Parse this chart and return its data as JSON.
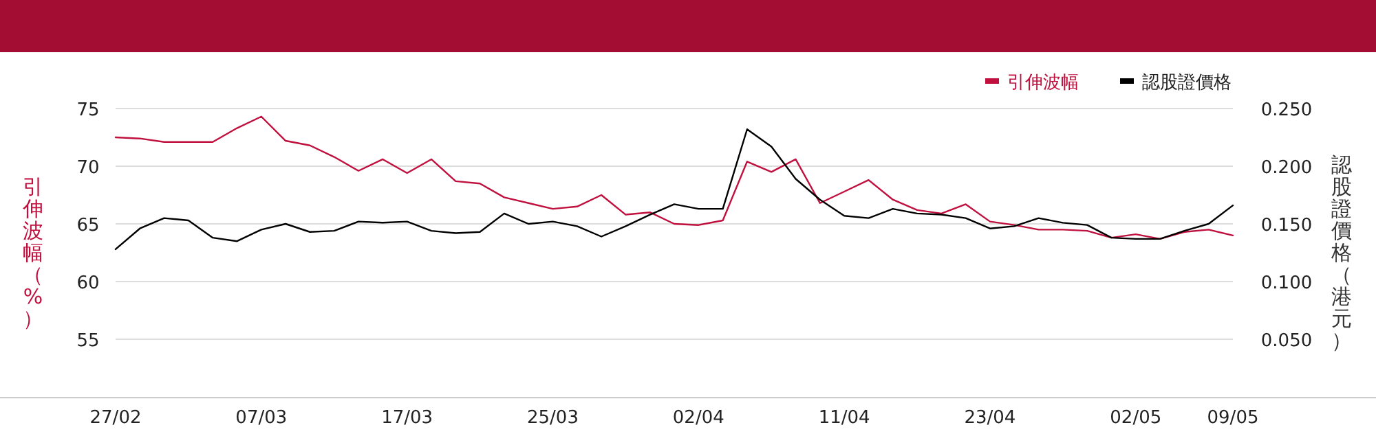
{
  "chart_data": {
    "type": "line",
    "categories": [
      "27/02",
      null,
      null,
      null,
      null,
      null,
      "07/03",
      null,
      null,
      null,
      null,
      null,
      "17/03",
      null,
      null,
      null,
      null,
      null,
      "25/03",
      null,
      null,
      null,
      null,
      null,
      "02/04",
      null,
      null,
      null,
      null,
      null,
      "11/04",
      null,
      null,
      null,
      null,
      null,
      "23/04",
      null,
      null,
      null,
      null,
      null,
      "02/05",
      null,
      null,
      null,
      "09/05"
    ],
    "ylabel": "引伸波幅（%）",
    "y2label": "認股證價格（港元）",
    "ylim": [
      50,
      75
    ],
    "yticks": [
      55,
      60,
      65,
      70,
      75
    ],
    "y2lim": [
      0,
      0.25
    ],
    "y2ticks": [
      {
        "value": 0.05,
        "label": "0.050"
      },
      {
        "value": 0.1,
        "label": "0.100"
      },
      {
        "value": 0.15,
        "label": "0.150"
      },
      {
        "value": 0.2,
        "label": "0.200"
      },
      {
        "value": 0.25,
        "label": "0.250"
      }
    ],
    "grid": "y",
    "legend": "top right",
    "series": [
      {
        "name": "引伸波幅",
        "color": "#c0103e",
        "values": [
          72.5,
          72.4,
          72.1,
          72.1,
          72.1,
          73.3,
          74.3,
          72.2,
          71.8,
          70.8,
          69.6,
          70.6,
          69.4,
          70.6,
          68.7,
          68.5,
          67.3,
          66.8,
          66.3,
          66.5,
          67.5,
          65.8,
          66.0,
          65.0,
          64.9,
          65.3,
          70.4,
          69.5,
          70.6,
          66.8,
          67.8,
          68.8,
          67.1,
          66.2,
          65.9,
          66.7,
          65.2,
          64.9,
          64.5,
          64.5,
          64.4,
          63.8,
          64.1,
          63.7,
          64.3,
          64.5,
          64.0
        ]
      },
      {
        "name": "認股證價格",
        "color": "#000000",
        "axis": "y2",
        "values": [
          0.128,
          0.146,
          0.155,
          0.153,
          0.138,
          0.135,
          0.145,
          0.15,
          0.143,
          0.144,
          0.152,
          0.151,
          0.152,
          0.144,
          0.142,
          0.143,
          0.159,
          0.15,
          0.152,
          0.148,
          0.139,
          0.148,
          0.158,
          0.167,
          0.163,
          0.163,
          0.232,
          0.217,
          0.189,
          0.171,
          0.157,
          0.155,
          0.163,
          0.159,
          0.158,
          0.155,
          0.146,
          0.148,
          0.155,
          0.151,
          0.149,
          0.138,
          0.137,
          0.137,
          0.144,
          0.15,
          0.166
        ]
      }
    ]
  }
}
